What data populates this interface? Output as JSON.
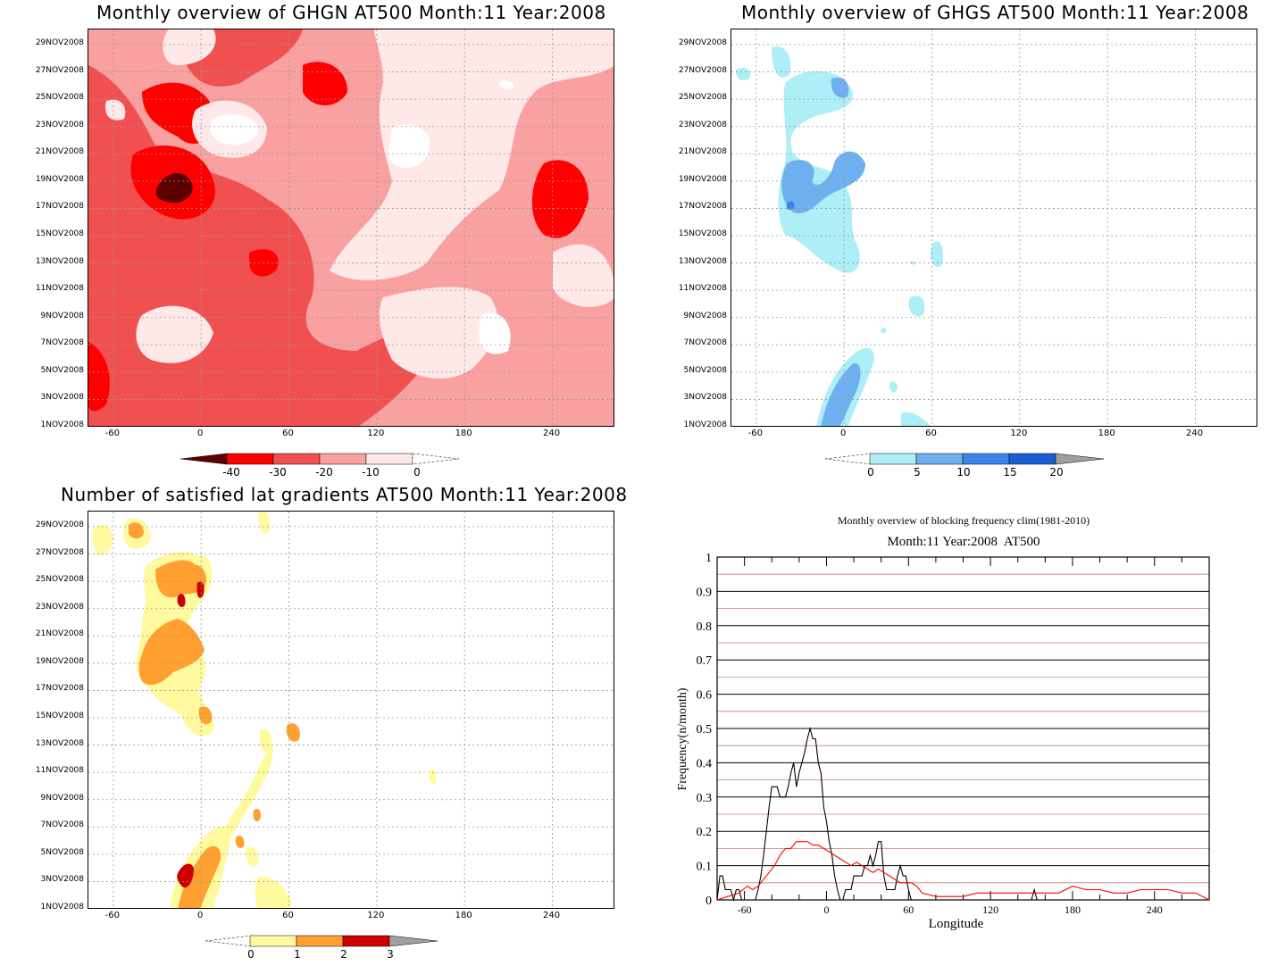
{
  "dates": [
    "1NOV2008",
    "3NOV2008",
    "5NOV2008",
    "7NOV2008",
    "9NOV2008",
    "11NOV2008",
    "13NOV2008",
    "15NOV2008",
    "17NOV2008",
    "19NOV2008",
    "21NOV2008",
    "23NOV2008",
    "25NOV2008",
    "27NOV2008",
    "29NOV2008"
  ],
  "lon_ticks": [
    "-60",
    "0",
    "60",
    "120",
    "180",
    "240"
  ],
  "panels": {
    "ghgn": {
      "title": "Monthly overview of GHGN AT500 Month:11 Year:2008",
      "colorbar_labels": [
        "-40",
        "-30",
        "-20",
        "-10",
        "0"
      ],
      "colors": [
        "#5c0000",
        "#ff0000",
        "#f15050",
        "#f9a0a0",
        "#ffe8e8"
      ]
    },
    "ghgs": {
      "title": "Monthly overview of GHGS AT500 Month:11 Year:2008",
      "colorbar_labels": [
        "0",
        "5",
        "10",
        "15",
        "20"
      ],
      "colors": [
        "#aeeef6",
        "#6fb1f0",
        "#3a85ea",
        "#1a5fd4",
        "#a0a0a0"
      ]
    },
    "lat": {
      "title": "Number of satisfied lat gradients AT500 Month:11 Year:2008",
      "colorbar_labels": [
        "0",
        "1",
        "2",
        "3"
      ],
      "colors": [
        "#fffaa0",
        "#ffa030",
        "#cc0000",
        "#a0a0a0"
      ]
    },
    "freq": {
      "title": "Monthly overview of blocking frequency clim(1981-2010)",
      "subtitle": "Month:11 Year:2008  AT500"
    }
  },
  "chart_data": [
    {
      "type": "heatmap",
      "title": "Monthly overview of GHGN AT500 Month:11 Year:2008",
      "x_ticks": [
        -60,
        0,
        60,
        120,
        180,
        240
      ],
      "y_ticks": [
        "1NOV2008",
        "3NOV2008",
        "5NOV2008",
        "7NOV2008",
        "9NOV2008",
        "11NOV2008",
        "13NOV2008",
        "15NOV2008",
        "17NOV2008",
        "19NOV2008",
        "21NOV2008",
        "23NOV2008",
        "25NOV2008",
        "27NOV2008",
        "29NOV2008"
      ],
      "xlim": [
        -77,
        283
      ],
      "levels": [
        -40,
        -30,
        -20,
        -10,
        0
      ],
      "colorbar": "bottom"
    },
    {
      "type": "heatmap",
      "title": "Monthly overview of GHGS AT500 Month:11 Year:2008",
      "x_ticks": [
        -60,
        0,
        60,
        120,
        180,
        240
      ],
      "y_ticks": [
        "1NOV2008",
        "3NOV2008",
        "5NOV2008",
        "7NOV2008",
        "9NOV2008",
        "11NOV2008",
        "13NOV2008",
        "15NOV2008",
        "17NOV2008",
        "19NOV2008",
        "21NOV2008",
        "23NOV2008",
        "25NOV2008",
        "27NOV2008",
        "29NOV2008"
      ],
      "xlim": [
        -77,
        283
      ],
      "levels": [
        0,
        5,
        10,
        15,
        20
      ],
      "colorbar": "bottom"
    },
    {
      "type": "heatmap",
      "title": "Number of satisfied lat gradients AT500 Month:11 Year:2008",
      "x_ticks": [
        -60,
        0,
        60,
        120,
        180,
        240
      ],
      "y_ticks": [
        "1NOV2008",
        "3NOV2008",
        "5NOV2008",
        "7NOV2008",
        "9NOV2008",
        "11NOV2008",
        "13NOV2008",
        "15NOV2008",
        "17NOV2008",
        "19NOV2008",
        "21NOV2008",
        "23NOV2008",
        "25NOV2008",
        "27NOV2008",
        "29NOV2008"
      ],
      "xlim": [
        -77,
        283
      ],
      "levels": [
        0,
        1,
        2,
        3
      ],
      "colorbar": "bottom"
    },
    {
      "type": "line",
      "title": "Monthly overview of blocking frequency clim(1981-2010)",
      "subtitle": "Month:11 Year:2008  AT500",
      "xlabel": "Longitude",
      "ylabel": "Frequency(n/month)",
      "xlim": [
        -80,
        280
      ],
      "ylim": [
        0,
        1
      ],
      "x_ticks": [
        -60,
        0,
        60,
        120,
        180,
        240
      ],
      "y_ticks": [
        0,
        0.1,
        0.2,
        0.3,
        0.4,
        0.5,
        0.6,
        0.7,
        0.8,
        0.9,
        1
      ],
      "grid": true,
      "series": [
        {
          "color": "#000000",
          "x": [
            -80,
            -78,
            -76,
            -74,
            -72,
            -70,
            -68,
            -66,
            -64,
            -62,
            -60,
            -58,
            -56,
            -54,
            -52,
            -50,
            -48,
            -46,
            -44,
            -42,
            -40,
            -38,
            -36,
            -34,
            -32,
            -30,
            -28,
            -26,
            -24,
            -22,
            -20,
            -18,
            -16,
            -14,
            -12,
            -10,
            -8,
            -6,
            -4,
            -2,
            0,
            2,
            4,
            6,
            8,
            10,
            12,
            14,
            16,
            18,
            20,
            22,
            24,
            26,
            28,
            30,
            32,
            34,
            36,
            38,
            40,
            42,
            44,
            46,
            48,
            50,
            52,
            54,
            56,
            58,
            60,
            62,
            64,
            66,
            68,
            70,
            72,
            74,
            76,
            78,
            80,
            100,
            120,
            140,
            150,
            152,
            154,
            156,
            158,
            160,
            170,
            200,
            240,
            280
          ],
          "y": [
            0,
            0.07,
            0.07,
            0.03,
            0.03,
            0.03,
            0,
            0.03,
            0.03,
            0,
            0,
            0,
            0,
            0,
            0,
            0.03,
            0.07,
            0.13,
            0.2,
            0.27,
            0.33,
            0.33,
            0.33,
            0.3,
            0.3,
            0.3,
            0.33,
            0.37,
            0.4,
            0.33,
            0.37,
            0.4,
            0.43,
            0.47,
            0.5,
            0.47,
            0.47,
            0.4,
            0.37,
            0.27,
            0.23,
            0.17,
            0.13,
            0.07,
            0.03,
            0,
            0,
            0.03,
            0.03,
            0.03,
            0.07,
            0.07,
            0.07,
            0.07,
            0.1,
            0.1,
            0.13,
            0.1,
            0.13,
            0.17,
            0.17,
            0.07,
            0.03,
            0.03,
            0.03,
            0.03,
            0.07,
            0.1,
            0.07,
            0.07,
            0.03,
            0,
            0,
            0,
            0,
            0,
            0,
            0,
            0,
            0,
            0,
            0,
            0,
            0,
            0,
            0.03,
            0,
            0,
            0,
            0,
            0,
            0,
            0,
            0
          ]
        },
        {
          "color": "#ff0000",
          "x": [
            -80,
            -72,
            -64,
            -58,
            -54,
            -50,
            -46,
            -42,
            -38,
            -34,
            -30,
            -26,
            -22,
            -18,
            -14,
            -10,
            -6,
            -2,
            2,
            6,
            10,
            14,
            18,
            22,
            26,
            30,
            34,
            38,
            42,
            46,
            50,
            54,
            58,
            62,
            66,
            70,
            80,
            90,
            100,
            110,
            120,
            130,
            140,
            150,
            160,
            170,
            180,
            190,
            200,
            210,
            220,
            230,
            240,
            250,
            260,
            270,
            280
          ],
          "y": [
            0,
            0.01,
            0.02,
            0.04,
            0.03,
            0.04,
            0.06,
            0.08,
            0.1,
            0.13,
            0.15,
            0.15,
            0.17,
            0.17,
            0.17,
            0.16,
            0.16,
            0.15,
            0.14,
            0.13,
            0.12,
            0.11,
            0.1,
            0.11,
            0.1,
            0.09,
            0.08,
            0.09,
            0.08,
            0.07,
            0.06,
            0.05,
            0.05,
            0.05,
            0.04,
            0.02,
            0.01,
            0.01,
            0.01,
            0.02,
            0.02,
            0.02,
            0.02,
            0.02,
            0.02,
            0.02,
            0.04,
            0.03,
            0.03,
            0.02,
            0.02,
            0.03,
            0.03,
            0.03,
            0.02,
            0.02,
            0
          ]
        }
      ]
    }
  ]
}
